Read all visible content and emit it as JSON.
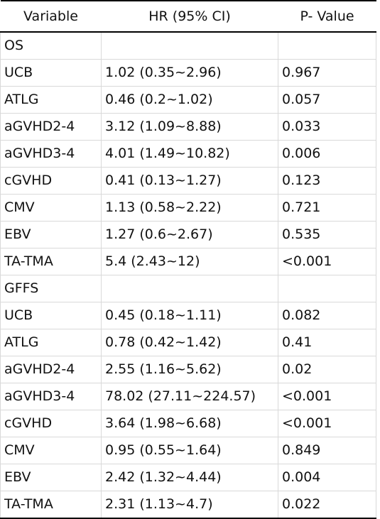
{
  "table": {
    "headers": [
      "Variable",
      "HR (95% CI)",
      "P- Value"
    ],
    "rows": [
      [
        "OS",
        "",
        ""
      ],
      [
        "UCB",
        "1.02 (0.35~2.96)",
        "0.967"
      ],
      [
        "ATLG",
        "0.46 (0.2~1.02)",
        "0.057"
      ],
      [
        "aGVHD2-4",
        "3.12 (1.09~8.88)",
        "0.033"
      ],
      [
        "aGVHD3-4",
        "4.01 (1.49~10.82)",
        "0.006"
      ],
      [
        "cGVHD",
        "0.41 (0.13~1.27)",
        "0.123"
      ],
      [
        "CMV",
        "1.13 (0.58~2.22)",
        "0.721"
      ],
      [
        "EBV",
        "1.27 (0.6~2.67)",
        "0.535"
      ],
      [
        "TA-TMA",
        "5.4 (2.43~12)",
        "<0.001"
      ],
      [
        "GFFS",
        "",
        ""
      ],
      [
        "UCB",
        "0.45 (0.18~1.11)",
        "0.082"
      ],
      [
        "ATLG",
        "0.78 (0.42~1.42)",
        "0.41"
      ],
      [
        "aGVHD2-4",
        "2.55 (1.16~5.62)",
        "0.02"
      ],
      [
        "aGVHD3-4",
        "78.02 (27.11~224.57)",
        "<0.001"
      ],
      [
        "cGVHD",
        "3.64 (1.98~6.68)",
        "<0.001"
      ],
      [
        "CMV",
        "0.95 (0.55~1.64)",
        "0.849"
      ],
      [
        "EBV",
        "2.42 (1.32~4.44)",
        "0.004"
      ],
      [
        "TA-TMA",
        "2.31 (1.13~4.7)",
        "0.022"
      ]
    ]
  }
}
